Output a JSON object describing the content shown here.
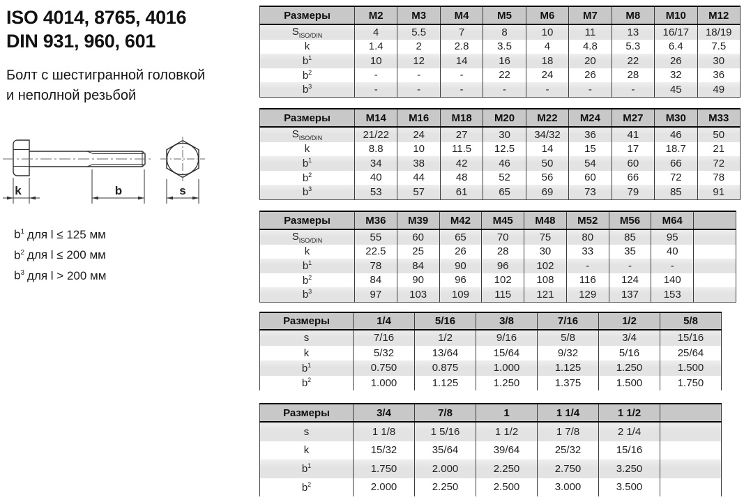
{
  "header": {
    "title_line1": "ISO 4014, 8765, 4016",
    "title_line2": "DIN 931, 960, 601",
    "subtitle_line1": "Болт с шестигранной головкой",
    "subtitle_line2": "и неполной резьбой"
  },
  "notes": [
    {
      "sym": "b",
      "sup": "1",
      "text": "для l ≤ 125 мм"
    },
    {
      "sym": "b",
      "sup": "2",
      "text": "для l ≤ 200 мм"
    },
    {
      "sym": "b",
      "sup": "3",
      "text": "для l > 200 мм"
    }
  ],
  "diagram": {
    "dim_k": "k",
    "dim_b": "b",
    "dim_s": "s"
  },
  "colors": {
    "table_header_bg": "#c7c8c7",
    "table_alt_row_bg": "#e2e3e2",
    "border": "#3c3c3c"
  },
  "tables": [
    {
      "name": "metric-m2-m12",
      "header_label": "Размеры",
      "columns": [
        "M2",
        "M3",
        "M4",
        "M5",
        "M6",
        "M7",
        "M8",
        "M10",
        "M12"
      ],
      "rows": [
        {
          "label": {
            "base": "S",
            "sub": "ISO/DIN"
          },
          "values": [
            "4",
            "5.5",
            "7",
            "8",
            "10",
            "11",
            "13",
            "16/17",
            "18/19"
          ]
        },
        {
          "label": {
            "base": "k"
          },
          "values": [
            "1.4",
            "2",
            "2.8",
            "3.5",
            "4",
            "4.8",
            "5.3",
            "6.4",
            "7.5"
          ]
        },
        {
          "label": {
            "base": "b",
            "sup": "1"
          },
          "values": [
            "10",
            "12",
            "14",
            "16",
            "18",
            "20",
            "22",
            "26",
            "30"
          ]
        },
        {
          "label": {
            "base": "b",
            "sup": "2"
          },
          "values": [
            "-",
            "-",
            "-",
            "22",
            "24",
            "26",
            "28",
            "32",
            "36"
          ]
        },
        {
          "label": {
            "base": "b",
            "sup": "3"
          },
          "values": [
            "-",
            "-",
            "-",
            "-",
            "-",
            "-",
            "-",
            "45",
            "49"
          ]
        }
      ]
    },
    {
      "name": "metric-m14-m33",
      "header_label": "Размеры",
      "columns": [
        "M14",
        "M16",
        "M18",
        "M20",
        "M22",
        "M24",
        "M27",
        "M30",
        "M33"
      ],
      "rows": [
        {
          "label": {
            "base": "S",
            "sub": "ISO/DIN"
          },
          "values": [
            "21/22",
            "24",
            "27",
            "30",
            "34/32",
            "36",
            "41",
            "46",
            "50"
          ]
        },
        {
          "label": {
            "base": "k"
          },
          "values": [
            "8.8",
            "10",
            "11.5",
            "12.5",
            "14",
            "15",
            "17",
            "18.7",
            "21"
          ]
        },
        {
          "label": {
            "base": "b",
            "sup": "1"
          },
          "values": [
            "34",
            "38",
            "42",
            "46",
            "50",
            "54",
            "60",
            "66",
            "72"
          ]
        },
        {
          "label": {
            "base": "b",
            "sup": "2"
          },
          "values": [
            "40",
            "44",
            "48",
            "52",
            "56",
            "60",
            "66",
            "72",
            "78"
          ]
        },
        {
          "label": {
            "base": "b",
            "sup": "3"
          },
          "values": [
            "53",
            "57",
            "61",
            "65",
            "69",
            "73",
            "79",
            "85",
            "91"
          ]
        }
      ]
    },
    {
      "name": "metric-m36-m64",
      "header_label": "Размеры",
      "columns": [
        "M36",
        "M39",
        "M42",
        "M45",
        "M48",
        "M52",
        "M56",
        "M64",
        ""
      ],
      "rows": [
        {
          "label": {
            "base": "S",
            "sub": "ISO/DIN"
          },
          "values": [
            "55",
            "60",
            "65",
            "70",
            "75",
            "80",
            "85",
            "95",
            ""
          ]
        },
        {
          "label": {
            "base": "k"
          },
          "values": [
            "22.5",
            "25",
            "26",
            "28",
            "30",
            "33",
            "35",
            "40",
            ""
          ]
        },
        {
          "label": {
            "base": "b",
            "sup": "1"
          },
          "values": [
            "78",
            "84",
            "90",
            "96",
            "102",
            "-",
            "-",
            "-",
            ""
          ]
        },
        {
          "label": {
            "base": "b",
            "sup": "2"
          },
          "values": [
            "84",
            "90",
            "96",
            "102",
            "108",
            "116",
            "124",
            "140",
            ""
          ]
        },
        {
          "label": {
            "base": "b",
            "sup": "3"
          },
          "values": [
            "97",
            "103",
            "109",
            "115",
            "121",
            "129",
            "137",
            "153",
            ""
          ]
        }
      ]
    },
    {
      "name": "imperial-quarter-to-fiveeighths",
      "header_label": "Размеры",
      "columns": [
        "1/4",
        "5/16",
        "3/8",
        "7/16",
        "1/2",
        "5/8"
      ],
      "rows": [
        {
          "label": {
            "base": "s"
          },
          "values": [
            "7/16",
            "1/2",
            "9/16",
            "5/8",
            "3/4",
            "15/16"
          ]
        },
        {
          "label": {
            "base": "k"
          },
          "values": [
            "5/32",
            "13/64",
            "15/64",
            "9/32",
            "5/16",
            "25/64"
          ]
        },
        {
          "label": {
            "base": "b",
            "sup": "1"
          },
          "values": [
            "0.750",
            "0.875",
            "1.000",
            "1.125",
            "1.250",
            "1.500"
          ]
        },
        {
          "label": {
            "base": "b",
            "sup": "2"
          },
          "values": [
            "1.000",
            "1.125",
            "1.250",
            "1.375",
            "1.500",
            "1.750"
          ]
        }
      ]
    },
    {
      "name": "imperial-threequarters-to-oneandhalf",
      "header_label": "Размеры",
      "columns": [
        "3/4",
        "7/8",
        "1",
        "1 1/4",
        "1 1/2",
        ""
      ],
      "rows": [
        {
          "label": {
            "base": "s"
          },
          "values": [
            "1 1/8",
            "1 5/16",
            "1 1/2",
            "1 7/8",
            "2 1/4",
            ""
          ]
        },
        {
          "label": {
            "base": "k"
          },
          "values": [
            "15/32",
            "35/64",
            "39/64",
            "25/32",
            "15/16",
            ""
          ]
        },
        {
          "label": {
            "base": "b",
            "sup": "1"
          },
          "values": [
            "1.750",
            "2.000",
            "2.250",
            "2.750",
            "3.250",
            ""
          ]
        },
        {
          "label": {
            "base": "b",
            "sup": "2"
          },
          "values": [
            "2.000",
            "2.250",
            "2.500",
            "3.000",
            "3.500",
            ""
          ]
        }
      ]
    }
  ]
}
